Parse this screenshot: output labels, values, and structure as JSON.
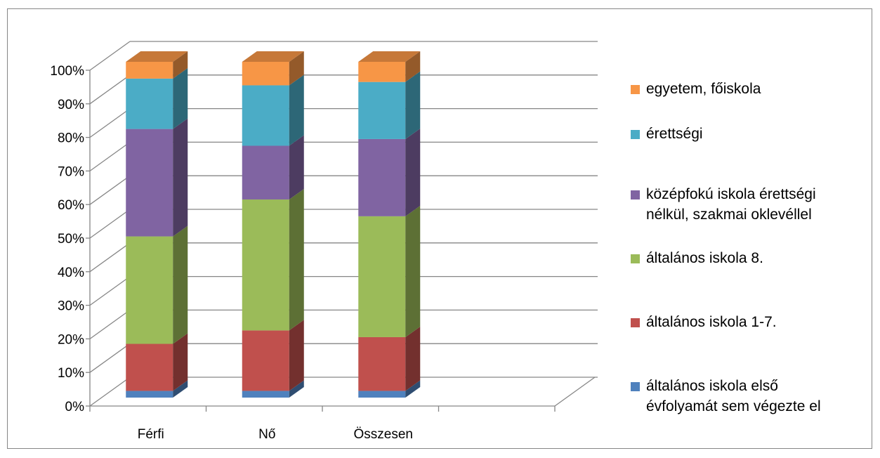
{
  "chart_data": {
    "type": "bar",
    "stacked": true,
    "percent_stacked": true,
    "three_d": true,
    "categories": [
      "Férfi",
      "Nő",
      "Összesen"
    ],
    "y_tick_labels": [
      "0%",
      "10%",
      "20%",
      "30%",
      "40%",
      "50%",
      "60%",
      "70%",
      "80%",
      "90%",
      "100%"
    ],
    "ylim": [
      0,
      100
    ],
    "grid": true,
    "legend_position": "right",
    "series": [
      {
        "name": "általános iskola első évfolyamát sem végezte el",
        "color": "#4f81bd",
        "values": [
          2,
          2,
          2
        ]
      },
      {
        "name": "általános iskola 1-7.",
        "color": "#c0504d",
        "values": [
          14,
          18,
          16
        ]
      },
      {
        "name": "általános iskola 8.",
        "color": "#9bbb59",
        "values": [
          32,
          39,
          36
        ]
      },
      {
        "name": "középfokú iskola érettségi nélkül, szakmai oklevéllel",
        "color": "#8064a2",
        "values": [
          32,
          16,
          23
        ]
      },
      {
        "name": "érettségi",
        "color": "#4bacc6",
        "values": [
          15,
          18,
          17
        ]
      },
      {
        "name": "egyetem, főiskola",
        "color": "#f79646",
        "values": [
          5,
          7,
          6
        ]
      }
    ]
  },
  "legend": {
    "items": [
      {
        "lines": [
          "egyetem, főiskola"
        ],
        "color": "#f79646"
      },
      {
        "lines": [
          "érettségi"
        ],
        "color": "#4bacc6"
      },
      {
        "lines": [
          "középfokú iskola érettségi",
          "nélkül, szakmai oklevéllel"
        ],
        "color": "#8064a2"
      },
      {
        "lines": [
          "általános iskola 8."
        ],
        "color": "#9bbb59"
      },
      {
        "lines": [
          "általános iskola 1-7."
        ],
        "color": "#c0504d"
      },
      {
        "lines": [
          "általános iskola első",
          "évfolyamát sem végezte el"
        ],
        "color": "#4f81bd"
      }
    ]
  }
}
